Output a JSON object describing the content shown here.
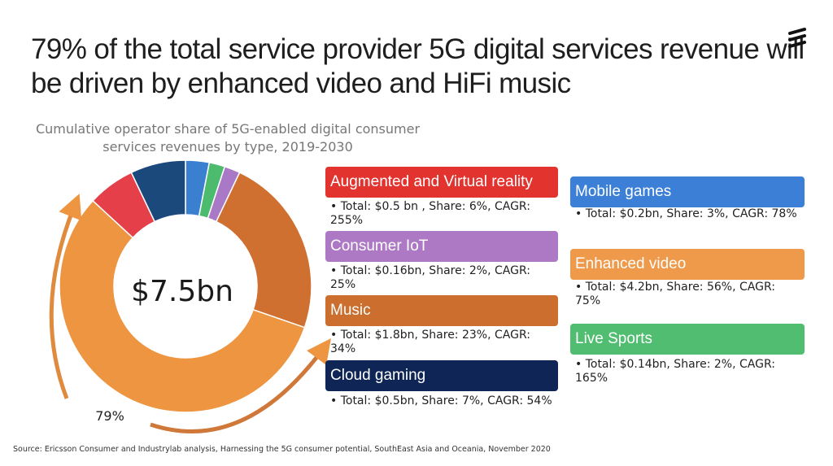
{
  "title": "79% of the total service provider 5G digital services revenue will be driven by enhanced video and HiFi music",
  "subtitle": "Cumulative operator share of 5G-enabled digital consumer services revenues by type, 2019-2030",
  "logo": "Ericsson",
  "chart_data": {
    "type": "pie",
    "center_label": "$7.5bn",
    "annotation": "79%",
    "slices": [
      {
        "name": "Mobile games",
        "share": 3,
        "color": "#3a7fd0"
      },
      {
        "name": "Live Sports",
        "share": 2,
        "color": "#4cbb6e"
      },
      {
        "name": "Consumer IoT",
        "share": 2,
        "color": "#a979c8"
      },
      {
        "name": "Music",
        "share": 23,
        "color": "#cf6f30"
      },
      {
        "name": "Enhanced video",
        "share": 56,
        "color": "#ee9541"
      },
      {
        "name": "Augmented and Virtual reality",
        "share": 6,
        "color": "#e5404a"
      },
      {
        "name": "Cloud gaming",
        "share": 7,
        "color": "#1c497b"
      }
    ]
  },
  "legend": {
    "arvr": {
      "label": "Augmented and Virtual reality",
      "text": "• Total: $0.5 bn , Share: 6%, CAGR: 255%",
      "color": "#e3332f"
    },
    "iot": {
      "label": "Consumer IoT",
      "text": "• Total: $0.16bn, Share: 2%, CAGR: 25%",
      "color": "#ad79c5"
    },
    "music": {
      "label": "Music",
      "text": "• Total: $1.8bn, Share: 23%, CAGR: 34%",
      "color": "#cb6e2e"
    },
    "cloud": {
      "label": "Cloud gaming",
      "text": "• Total: $0.5bn, Share: 7%, CAGR: 54%",
      "color": "#0e2556"
    },
    "games": {
      "label": "Mobile games",
      "text": "• Total: $0.2bn, Share: 3%, CAGR: 78%",
      "color": "#3b7fd6"
    },
    "video": {
      "label": "Enhanced video",
      "text": "• Total: $4.2bn, Share: 56%, CAGR: 75%",
      "color": "#ee9a4a"
    },
    "sports": {
      "label": "Live Sports",
      "text": "• Total: $0.14bn, Share: 2%, CAGR: 165%",
      "color": "#50bd70"
    }
  },
  "source": "Source: Ericsson Consumer and Industrylab analysis, Harnessing the 5G consumer potential, SouthEast Asia and Oceania, November 2020"
}
